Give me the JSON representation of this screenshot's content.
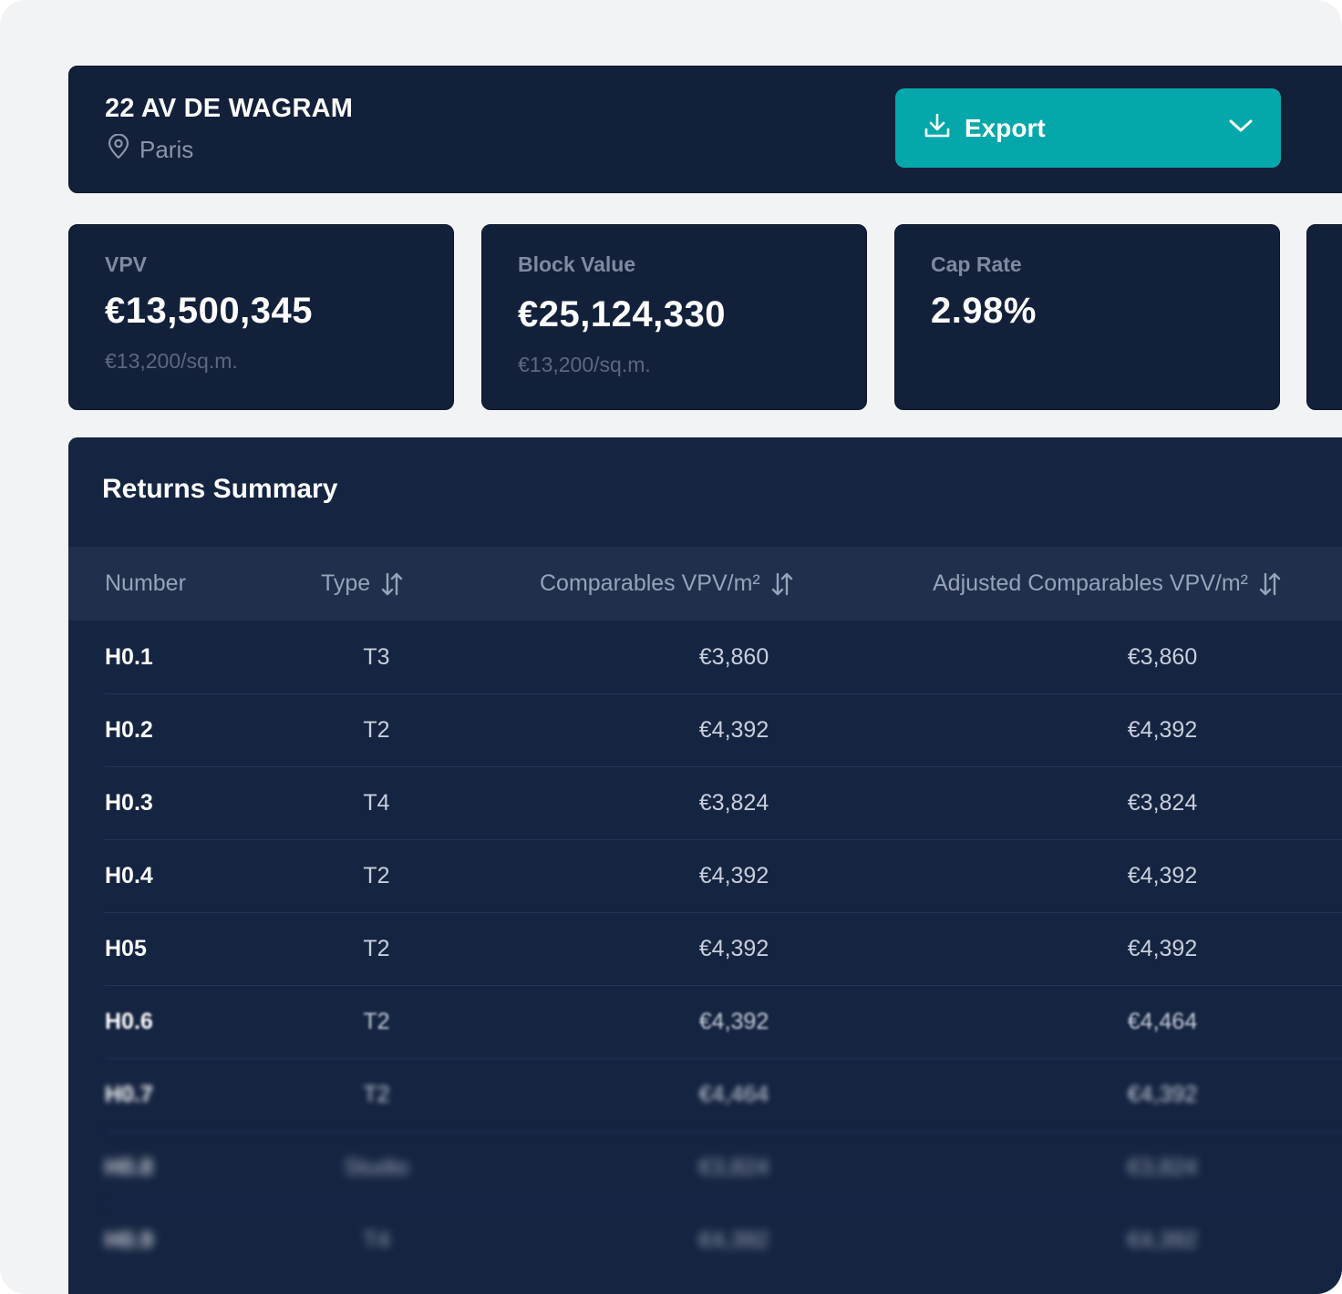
{
  "property": {
    "title": "22 AV DE WAGRAM",
    "location": "Paris"
  },
  "export": {
    "label": "Export"
  },
  "kpis": [
    {
      "label": "VPV",
      "value": "€13,500,345",
      "sub": "€13,200/sq.m."
    },
    {
      "label": "Block Value",
      "value": "€25,124,330",
      "sub": "€13,200/sq.m."
    },
    {
      "label": "Cap Rate",
      "value": "2.98%",
      "sub": ""
    }
  ],
  "table": {
    "title": "Returns Summary",
    "headers": [
      "Number",
      "Type",
      "Comparables VPV/m²",
      "Adjusted Comparables VPV/m²"
    ],
    "rows": [
      [
        "H0.1",
        "T3",
        "€3,860",
        "€3,860"
      ],
      [
        "H0.2",
        "T2",
        "€4,392",
        "€4,392"
      ],
      [
        "H0.3",
        "T4",
        "€3,824",
        "€3,824"
      ],
      [
        "H0.4",
        "T2",
        "€4,392",
        "€4,392"
      ],
      [
        "H05",
        "T2",
        "€4,392",
        "€4,392"
      ],
      [
        "H0.6",
        "T2",
        "€4,392",
        "€4,464"
      ],
      [
        "H0.7",
        "T2",
        "€4,464",
        "€4,392"
      ],
      [
        "H0.8",
        "Studio",
        "€3,824",
        "€3,824"
      ],
      [
        "H0.9",
        "T4",
        "€4,392",
        "€4,392"
      ]
    ]
  },
  "colors": {
    "accent": "#04a8aa",
    "panel": "#13203a",
    "table_bg": "#152441",
    "header_row": "#1f2f4c"
  },
  "icons": {
    "location": "map-pin-icon",
    "export": "download-icon",
    "dropdown": "chevron-down-icon",
    "sort": "sort-icon"
  }
}
